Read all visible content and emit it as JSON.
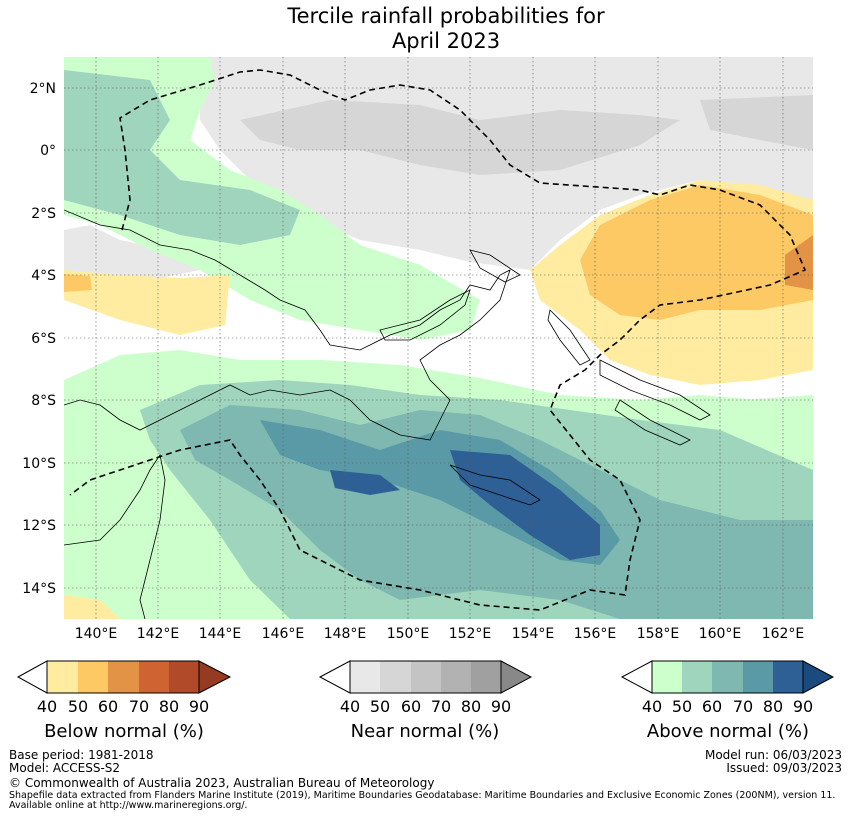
{
  "title": {
    "line1": "Tercile rainfall probabilities for",
    "line2": "April 2023"
  },
  "map": {
    "lat_labels": [
      "2°N",
      "0°",
      "2°S",
      "4°S",
      "6°S",
      "8°S",
      "10°S",
      "12°S",
      "14°S"
    ],
    "lon_labels": [
      "140°E",
      "142°E",
      "144°E",
      "146°E",
      "148°E",
      "150°E",
      "152°E",
      "154°E",
      "156°E",
      "158°E",
      "160°E",
      "162°E"
    ],
    "lat_range": [
      -15,
      3
    ],
    "lon_range": [
      139,
      163
    ]
  },
  "colorbars": [
    {
      "name": "Below normal (%)",
      "ticks": [
        "40",
        "50",
        "60",
        "70",
        "80",
        "90"
      ],
      "colors": [
        "#ffeca0",
        "#fdc965",
        "#e39345",
        "#cf6331",
        "#b04a28",
        "#943b22"
      ]
    },
    {
      "name": "Near normal (%)",
      "ticks": [
        "40",
        "50",
        "60",
        "70",
        "80",
        "90"
      ],
      "colors": [
        "#e8e8e8",
        "#d6d6d6",
        "#c4c4c4",
        "#b2b2b2",
        "#a0a0a0",
        "#888888"
      ]
    },
    {
      "name": "Above normal (%)",
      "ticks": [
        "40",
        "50",
        "60",
        "70",
        "80",
        "90"
      ],
      "colors": [
        "#ccffcc",
        "#9fd4bd",
        "#7fb8b0",
        "#5a9aa6",
        "#2e6096",
        "#1b4a7e"
      ]
    }
  ],
  "footer": {
    "base_period": "Base period: 1981-2018",
    "model": "Model: ACCESS-S2",
    "model_run": "Model run: 06/03/2023",
    "issued": "Issued: 09/03/2023",
    "copyright": "© Commonwealth of Australia 2023, Australian Bureau of Meteorology",
    "shapefile_line1": "Shapefile data extracted from Flanders Marine Institute (2019), Maritime Boundaries Geodatabase: Maritime Boundaries and Exclusive Economic Zones (200NM), version 11.",
    "shapefile_line2": "Available online at http://www.marineregions.org/."
  }
}
